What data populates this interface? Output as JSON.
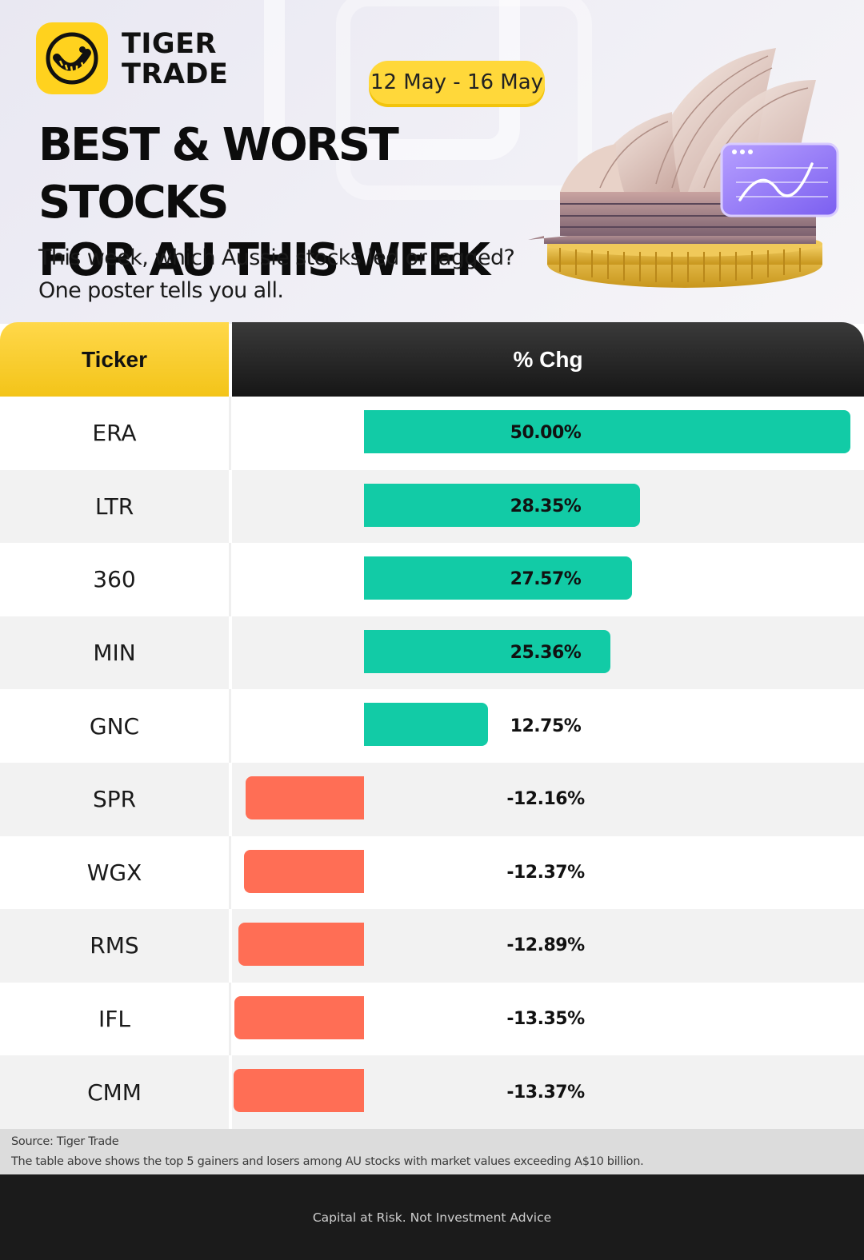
{
  "brand": {
    "line1": "TIGER",
    "line2": "TRADE"
  },
  "date_range": "12 May - 16 May",
  "headline": {
    "line1": "BEST & WORST STOCKS",
    "line2": "FOR AU THIS WEEK"
  },
  "subtitle": {
    "line1": "This week, which Aussie stocks led or lagged?",
    "line2": "One poster tells you all."
  },
  "table": {
    "col_ticker": "Ticker",
    "col_change": "% Chg"
  },
  "colors": {
    "positive": "#12cba6",
    "negative": "#ff6e55",
    "header_yellow": "#ffd21e",
    "header_dark": "#1e1e1e"
  },
  "chart_data": {
    "type": "bar",
    "orientation": "horizontal",
    "categories": [
      "ERA",
      "LTR",
      "360",
      "MIN",
      "GNC",
      "SPR",
      "WGX",
      "RMS",
      "IFL",
      "CMM"
    ],
    "values": [
      50.0,
      28.35,
      27.57,
      25.36,
      12.75,
      -12.16,
      -12.37,
      -12.89,
      -13.35,
      -13.37
    ],
    "labels": [
      "50.00%",
      "28.35%",
      "27.57%",
      "25.36%",
      "12.75%",
      "-12.16%",
      "-12.37%",
      "-12.89%",
      "-13.35%",
      "-13.37%"
    ],
    "title": "BEST & WORST STOCKS FOR AU THIS WEEK",
    "xlabel": "% Chg",
    "ylabel": "Ticker",
    "grid": false
  },
  "source": {
    "line1": "Source: Tiger Trade",
    "line2": "The table above shows the top 5 gainers and losers among AU stocks with market values exceeding A$10 billion."
  },
  "footer": "Capital at Risk. Not Investment Advice"
}
